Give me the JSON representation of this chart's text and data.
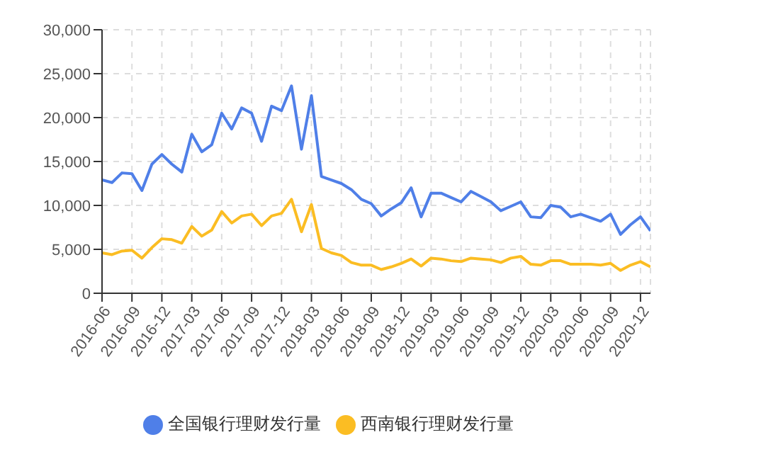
{
  "chart_data": {
    "type": "line",
    "x": [
      "2016-06",
      "2016-07",
      "2016-08",
      "2016-09",
      "2016-10",
      "2016-11",
      "2016-12",
      "2017-01",
      "2017-02",
      "2017-03",
      "2017-04",
      "2017-05",
      "2017-06",
      "2017-07",
      "2017-08",
      "2017-09",
      "2017-10",
      "2017-11",
      "2017-12",
      "2018-01",
      "2018-02",
      "2018-03",
      "2018-04",
      "2018-05",
      "2018-06",
      "2018-07",
      "2018-08",
      "2018-09",
      "2018-10",
      "2018-11",
      "2018-12",
      "2019-01",
      "2019-02",
      "2019-03",
      "2019-04",
      "2019-05",
      "2019-06",
      "2019-07",
      "2019-08",
      "2019-09",
      "2019-10",
      "2019-11",
      "2019-12",
      "2020-01",
      "2020-02",
      "2020-03",
      "2020-04",
      "2020-05",
      "2020-06",
      "2020-07",
      "2020-08",
      "2020-09",
      "2020-10",
      "2020-11",
      "2020-12",
      "2021-01"
    ],
    "series": [
      {
        "name": "全国银行理财发行量",
        "color": "#4f7fe8",
        "values": [
          12900,
          12600,
          13700,
          13600,
          11700,
          14700,
          15800,
          14700,
          13800,
          18100,
          16100,
          16900,
          20500,
          18700,
          21100,
          20500,
          17300,
          21300,
          20800,
          23600,
          16400,
          22500,
          13300,
          12900,
          12500,
          11800,
          10700,
          10200,
          8800,
          9600,
          10300,
          12000,
          8700,
          11400,
          11400,
          10900,
          10400,
          11600,
          11000,
          10400,
          9400,
          9900,
          10400,
          8700,
          8600,
          10000,
          9800,
          8700,
          9000,
          8600,
          8200,
          9000,
          6700,
          7800,
          8700,
          7100
        ]
      },
      {
        "name": "西南银行理财发行量",
        "color": "#fbbd23",
        "values": [
          4600,
          4400,
          4800,
          4900,
          4000,
          5200,
          6200,
          6100,
          5700,
          7600,
          6500,
          7200,
          9300,
          8000,
          8800,
          9000,
          7700,
          8800,
          9100,
          10700,
          7000,
          10100,
          5100,
          4600,
          4300,
          3500,
          3200,
          3200,
          2700,
          3000,
          3400,
          3900,
          3100,
          4000,
          3900,
          3700,
          3600,
          4000,
          3900,
          3800,
          3500,
          4000,
          4200,
          3300,
          3200,
          3700,
          3700,
          3300,
          3300,
          3300,
          3200,
          3400,
          2600,
          3200,
          3600,
          3000
        ]
      }
    ],
    "xlim": [
      "2016-06",
      "2021-01"
    ],
    "xticks": [
      "2016-06",
      "2016-09",
      "2016-12",
      "2017-03",
      "2017-06",
      "2017-09",
      "2017-12",
      "2018-03",
      "2018-06",
      "2018-09",
      "2018-12",
      "2019-03",
      "2019-06",
      "2019-09",
      "2019-12",
      "2020-03",
      "2020-06",
      "2020-09",
      "2020-12"
    ],
    "ylim": [
      0,
      30000
    ],
    "yticks": [
      0,
      {
        "value": 5000,
        "label": "5,000"
      },
      {
        "value": 10000,
        "label": "10,000"
      },
      {
        "value": 15000,
        "label": "15,000"
      },
      {
        "value": 20000,
        "label": "20,000"
      },
      {
        "value": 25000,
        "label": "25,000"
      },
      {
        "value": 30000,
        "label": "30,000"
      }
    ],
    "grid": true,
    "legend": "bottom",
    "marker": "none",
    "line_style": "solid"
  }
}
